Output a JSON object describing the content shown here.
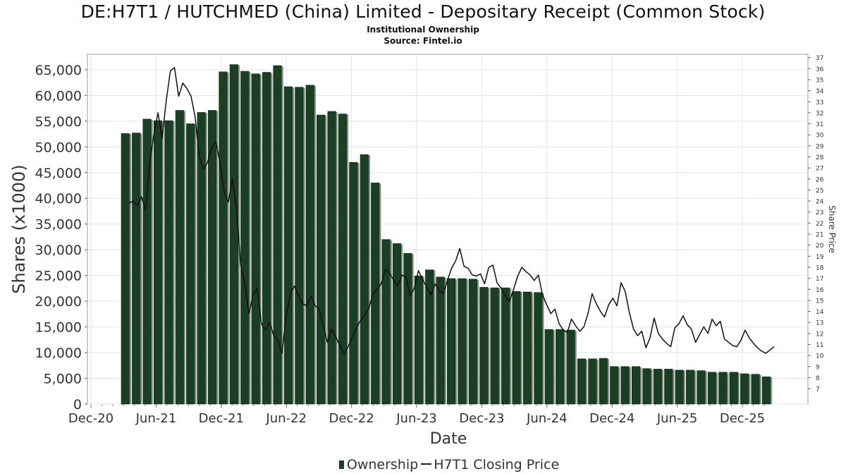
{
  "chart_data": {
    "type": "bar",
    "title": "DE:H7T1 / HUTCHMED (China) Limited - Depositary Receipt (Common Stock)",
    "subtitle": "Institutional Ownership",
    "source": "Source: Fintel.io",
    "xlabel": "Date",
    "ylabel": "Shares (x1000)",
    "y2label": "Share Price",
    "ylim": [
      0,
      68000
    ],
    "y2lim": [
      5.6,
      37.3
    ],
    "x_ticks": [
      "Dec-20",
      "Jun-21",
      "Dec-21",
      "Jun-22",
      "Dec-22",
      "Jun-23",
      "Dec-23",
      "Jun-24",
      "Dec-24",
      "Jun-25",
      "Dec-25"
    ],
    "y_ticks": [
      "0",
      "5,000",
      "10,000",
      "15,000",
      "20,000",
      "25,000",
      "30,000",
      "35,000",
      "40,000",
      "45,000",
      "50,000",
      "55,000",
      "60,000",
      "65,000"
    ],
    "y2_ticks": [
      "7",
      "8",
      "9",
      "10",
      "11",
      "12",
      "13",
      "14",
      "15",
      "16",
      "17",
      "18",
      "19",
      "20",
      "21",
      "22",
      "23",
      "24",
      "25",
      "26",
      "27",
      "28",
      "29",
      "30",
      "31",
      "32",
      "33",
      "34",
      "35",
      "36",
      "37"
    ],
    "grid": true,
    "legend_position": "bottom",
    "series": [
      {
        "name": "Ownership",
        "color": "#1a4023",
        "values": [
          52600,
          52700,
          55400,
          55100,
          55100,
          57100,
          54500,
          56700,
          57100,
          64600,
          66000,
          64700,
          64200,
          64500,
          65800,
          61700,
          61600,
          62000,
          56200,
          56900,
          56400,
          47000,
          48500,
          43000,
          32000,
          31200,
          29300,
          24900,
          26100,
          24700,
          24400,
          24400,
          24300,
          22700,
          22600,
          22600,
          21900,
          21800,
          21700,
          14500,
          14500,
          14400,
          8800,
          8800,
          8900,
          7300,
          7300,
          7300,
          6900,
          6800,
          6800,
          6600,
          6600,
          6500,
          6200,
          6200,
          6200,
          5900,
          5800,
          5300
        ]
      },
      {
        "name": "H7T1 Closing Price",
        "color": "#111111",
        "values": [
          23.8,
          24.0,
          23.6,
          24.4,
          23.2,
          27.4,
          30.0,
          32.0,
          29.7,
          33.1,
          35.8,
          36.1,
          33.5,
          34.7,
          34.2,
          33.5,
          31.6,
          28.0,
          26.9,
          27.5,
          28.8,
          29.4,
          27.5,
          24.8,
          23.9,
          26.0,
          23.3,
          18.2,
          16.5,
          13.8,
          15.5,
          16.1,
          12.9,
          12.3,
          13.0,
          11.8,
          11.4,
          10.2,
          13.6,
          15.6,
          16.3,
          15.4,
          14.7,
          14.5,
          15.4,
          14.5,
          14.2,
          12.6,
          11.2,
          12.4,
          11.7,
          10.9,
          10.2,
          10.8,
          11.7,
          12.5,
          13.2,
          13.6,
          14.3,
          15.6,
          16.0,
          16.5,
          17.8,
          17.5,
          16.8,
          16.3,
          17.3,
          17.1,
          15.4,
          16.1,
          17.7,
          16.9,
          16.2,
          15.5,
          16.5,
          15.9,
          15.6,
          16.8,
          17.9,
          18.6,
          19.7,
          18.1,
          17.9,
          17.3,
          17.2,
          17.4,
          16.5,
          18.0,
          18.2,
          16.6,
          16.1,
          15.4,
          14.9,
          16.0,
          17.2,
          18.0,
          17.6,
          17.3,
          16.8,
          17.3,
          15.5,
          14.6,
          13.8,
          14.2,
          12.9,
          12.3,
          12.1,
          13.3,
          12.7,
          12.2,
          12.6,
          13.8,
          15.6,
          14.7,
          14.0,
          13.5,
          14.6,
          15.2,
          14.5,
          16.6,
          15.8,
          13.9,
          12.4,
          11.8,
          12.2,
          10.7,
          11.6,
          13.4,
          12.0,
          11.5,
          11.1,
          10.8,
          12.5,
          12.9,
          13.6,
          12.8,
          12.4,
          11.2,
          11.9,
          12.6,
          12.0,
          13.3,
          12.7,
          13.1,
          11.5,
          11.2,
          10.9,
          10.8,
          11.4,
          12.3,
          11.6,
          11.1,
          10.7,
          10.4,
          10.2,
          10.5,
          10.8
        ]
      }
    ]
  }
}
